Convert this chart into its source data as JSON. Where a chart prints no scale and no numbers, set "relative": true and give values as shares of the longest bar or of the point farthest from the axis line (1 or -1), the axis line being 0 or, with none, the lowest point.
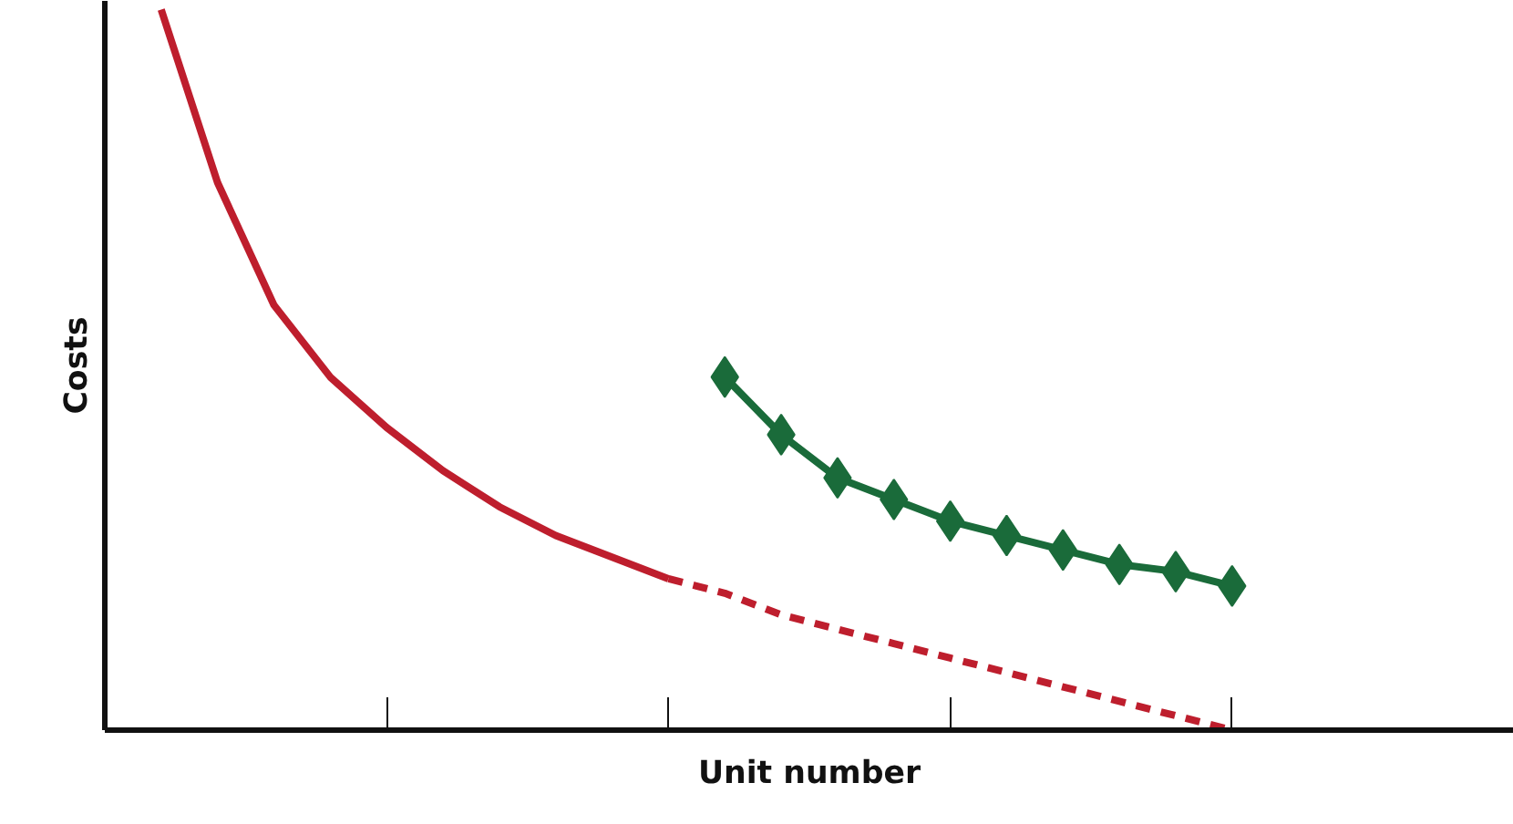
{
  "chart_data": {
    "type": "line",
    "xlabel": "Unit number",
    "ylabel": "Costs",
    "relative": true,
    "tick_labels": false,
    "categories": [
      null,
      null,
      null,
      null,
      null,
      null,
      null,
      null,
      null,
      null,
      null,
      null,
      null,
      null,
      null,
      null,
      null,
      null,
      null,
      null,
      null,
      null,
      null,
      null,
      null,
      null
    ],
    "series": [
      {
        "color": "#be1e2d",
        "line_style": "solid",
        "marker": "none",
        "values": [
          null,
          1.0,
          0.76,
          0.59,
          0.49,
          0.42,
          0.36,
          0.31,
          0.27,
          0.24,
          0.21,
          null,
          null,
          null,
          null,
          null,
          null,
          null,
          null,
          null,
          null,
          null,
          null,
          null,
          null,
          null
        ]
      },
      {
        "color": "#be1e2d",
        "line_style": "dashed",
        "marker": "none",
        "values": [
          null,
          null,
          null,
          null,
          null,
          null,
          null,
          null,
          null,
          null,
          0.21,
          0.19,
          0.16,
          0.14,
          0.12,
          0.1,
          0.08,
          0.06,
          0.04,
          0.02,
          0.0,
          null,
          null,
          null,
          null,
          null
        ]
      },
      {
        "color": "#1a6b3a",
        "line_style": "solid",
        "marker": "diamond",
        "values": [
          null,
          null,
          null,
          null,
          null,
          null,
          null,
          null,
          null,
          null,
          null,
          0.49,
          0.41,
          0.35,
          0.32,
          0.29,
          0.27,
          0.25,
          0.23,
          0.22,
          0.2,
          null,
          null,
          null,
          null,
          null
        ]
      }
    ]
  }
}
